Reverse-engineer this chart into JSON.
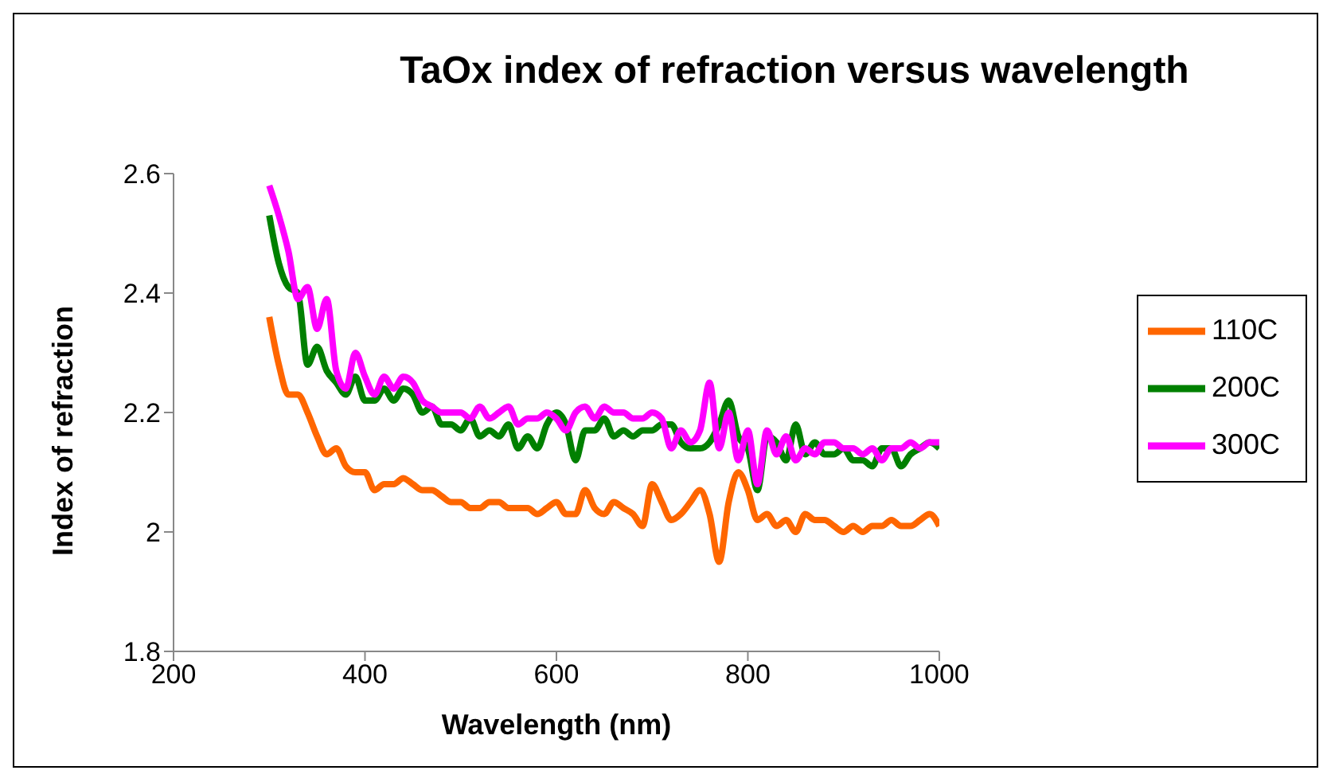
{
  "chart_data": {
    "type": "line",
    "title": "TaOx index of refraction versus wavelength",
    "xlabel": "Wavelength (nm)",
    "ylabel": "Index of refraction",
    "x": [
      300,
      310,
      320,
      330,
      340,
      350,
      360,
      370,
      380,
      390,
      400,
      410,
      420,
      430,
      440,
      450,
      460,
      470,
      480,
      490,
      500,
      510,
      520,
      530,
      540,
      550,
      560,
      570,
      580,
      590,
      600,
      610,
      620,
      630,
      640,
      650,
      660,
      670,
      680,
      690,
      700,
      710,
      720,
      730,
      740,
      750,
      760,
      770,
      780,
      790,
      800,
      810,
      820,
      830,
      840,
      850,
      860,
      870,
      880,
      890,
      900,
      910,
      920,
      930,
      940,
      950,
      960,
      970,
      980,
      990,
      1000
    ],
    "series": [
      {
        "name": "110C",
        "color": "#ff6600",
        "values": [
          2.36,
          2.28,
          2.23,
          2.23,
          2.2,
          2.16,
          2.13,
          2.14,
          2.11,
          2.1,
          2.1,
          2.07,
          2.08,
          2.08,
          2.09,
          2.08,
          2.07,
          2.07,
          2.06,
          2.05,
          2.05,
          2.04,
          2.04,
          2.05,
          2.05,
          2.04,
          2.04,
          2.04,
          2.03,
          2.04,
          2.05,
          2.03,
          2.03,
          2.07,
          2.04,
          2.03,
          2.05,
          2.04,
          2.03,
          2.01,
          2.08,
          2.05,
          2.02,
          2.03,
          2.05,
          2.07,
          2.03,
          1.95,
          2.05,
          2.1,
          2.07,
          2.02,
          2.03,
          2.01,
          2.02,
          2.0,
          2.03,
          2.02,
          2.02,
          2.01,
          2.0,
          2.01,
          2.0,
          2.01,
          2.01,
          2.02,
          2.01,
          2.01,
          2.02,
          2.03,
          2.01
        ]
      },
      {
        "name": "200C",
        "color": "#008000",
        "values": [
          2.53,
          2.45,
          2.41,
          2.4,
          2.28,
          2.31,
          2.27,
          2.25,
          2.23,
          2.26,
          2.22,
          2.22,
          2.24,
          2.22,
          2.24,
          2.23,
          2.2,
          2.21,
          2.18,
          2.18,
          2.17,
          2.19,
          2.16,
          2.17,
          2.16,
          2.18,
          2.14,
          2.16,
          2.14,
          2.18,
          2.2,
          2.18,
          2.12,
          2.17,
          2.17,
          2.19,
          2.16,
          2.17,
          2.16,
          2.17,
          2.17,
          2.18,
          2.18,
          2.15,
          2.14,
          2.14,
          2.15,
          2.18,
          2.22,
          2.16,
          2.14,
          2.07,
          2.16,
          2.15,
          2.12,
          2.18,
          2.13,
          2.15,
          2.13,
          2.13,
          2.14,
          2.12,
          2.12,
          2.11,
          2.14,
          2.14,
          2.11,
          2.13,
          2.14,
          2.15,
          2.14
        ]
      },
      {
        "name": "300C",
        "color": "#ff00ff",
        "values": [
          2.58,
          2.53,
          2.47,
          2.39,
          2.41,
          2.34,
          2.39,
          2.27,
          2.24,
          2.3,
          2.26,
          2.23,
          2.26,
          2.24,
          2.26,
          2.25,
          2.22,
          2.21,
          2.2,
          2.2,
          2.2,
          2.19,
          2.21,
          2.19,
          2.2,
          2.21,
          2.18,
          2.19,
          2.19,
          2.2,
          2.19,
          2.17,
          2.2,
          2.21,
          2.19,
          2.21,
          2.2,
          2.2,
          2.19,
          2.19,
          2.2,
          2.19,
          2.14,
          2.17,
          2.15,
          2.17,
          2.25,
          2.14,
          2.2,
          2.12,
          2.17,
          2.08,
          2.17,
          2.13,
          2.16,
          2.12,
          2.14,
          2.13,
          2.15,
          2.15,
          2.14,
          2.14,
          2.13,
          2.14,
          2.12,
          2.14,
          2.14,
          2.15,
          2.14,
          2.15,
          2.15
        ]
      }
    ],
    "xlim": [
      200,
      1000
    ],
    "xticks": [
      200,
      400,
      600,
      800,
      1000
    ],
    "ylim": [
      1.8,
      2.6
    ],
    "yticks": [
      1.8,
      2.0,
      2.2,
      2.4,
      2.6
    ],
    "grid": false,
    "legend": "right",
    "marker": "none",
    "line_style": "solid"
  }
}
